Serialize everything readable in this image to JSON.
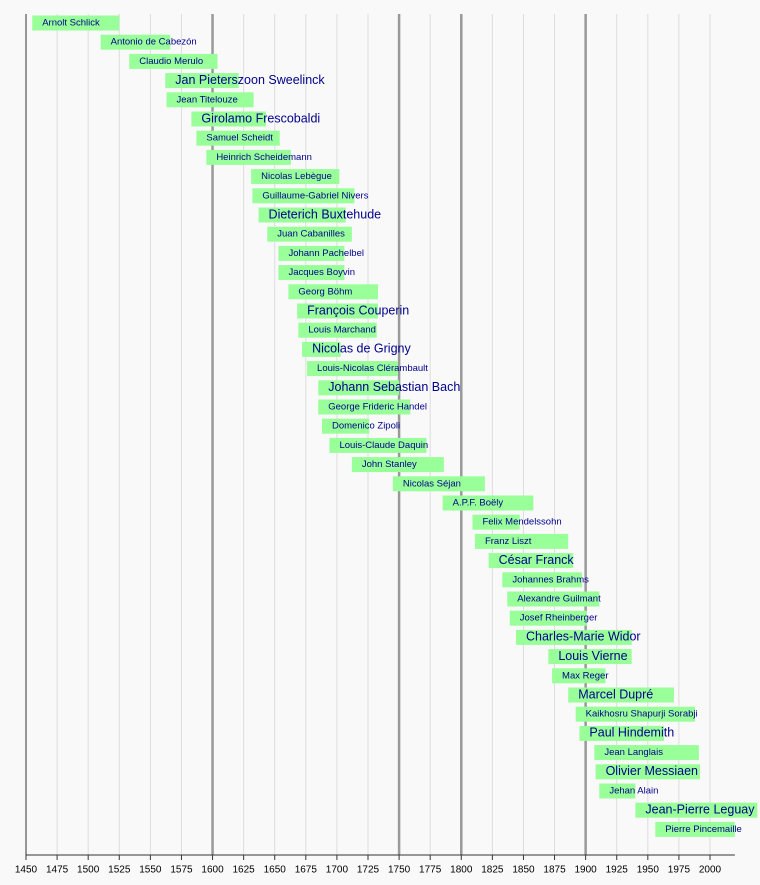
{
  "chart_data": {
    "type": "timeline",
    "categories": [
      "Arnolt Schlick",
      "Antonio de Cabezón",
      "Claudio Merulo",
      "Jan Pieterszoon Sweelinck",
      "Jean Titelouze",
      "Girolamo Frescobaldi",
      "Samuel Scheidt",
      "Heinrich Scheidemann",
      "Nicolas Lebègue",
      "Guillaume-Gabriel Nivers",
      "Dieterich Buxtehude",
      "Juan Cabanilles",
      "Johann Pachelbel",
      "Jacques Boyvin",
      "Georg Böhm",
      "François Couperin",
      "Louis Marchand",
      "Nicolas de Grigny",
      "Louis-Nicolas Clérambault",
      "Johann Sebastian Bach",
      "George Frideric Handel",
      "Domenico Zipoli",
      "Louis-Claude Daquin",
      "John Stanley",
      "Nicolas Séjan",
      "A.P.F. Boëly",
      "Felix Mendelssohn",
      "Franz Liszt",
      "César Franck",
      "Johannes Brahms",
      "Alexandre Guilmant",
      "Josef Rheinberger",
      "Charles-Marie Widor",
      "Louis Vierne",
      "Max Reger",
      "Marcel Dupré",
      "Kaikhosru Shapurji Sorabji",
      "Paul Hindemith",
      "Jean Langlais",
      "Olivier Messiaen",
      "Jehan Alain",
      "Jean-Pierre Leguay",
      "Pierre Pincemaille"
    ],
    "start": [
      1455,
      1510,
      1533,
      1562,
      1563,
      1583,
      1587,
      1595,
      1631,
      1632,
      1637,
      1644,
      1653,
      1653,
      1661,
      1668,
      1669,
      1672,
      1676,
      1685,
      1685,
      1688,
      1694,
      1712,
      1745,
      1785,
      1809,
      1811,
      1822,
      1833,
      1837,
      1839,
      1844,
      1870,
      1873,
      1886,
      1892,
      1895,
      1907,
      1908,
      1911,
      1940,
      1956
    ],
    "end": [
      1525,
      1566,
      1604,
      1621,
      1633,
      1643,
      1654,
      1663,
      1702,
      1714,
      1707,
      1712,
      1706,
      1706,
      1733,
      1733,
      1732,
      1703,
      1749,
      1750,
      1759,
      1726,
      1772,
      1786,
      1819,
      1858,
      1847,
      1886,
      1890,
      1897,
      1911,
      1901,
      1937,
      1937,
      1916,
      1971,
      1988,
      1963,
      1991,
      1992,
      1940,
      2038,
      2020
    ],
    "large_label": [
      false,
      false,
      false,
      true,
      false,
      true,
      false,
      false,
      false,
      false,
      true,
      false,
      false,
      false,
      false,
      true,
      false,
      true,
      false,
      true,
      false,
      false,
      false,
      false,
      false,
      false,
      false,
      false,
      true,
      false,
      false,
      false,
      true,
      true,
      false,
      true,
      false,
      true,
      false,
      true,
      false,
      true,
      false
    ],
    "color": "#99ff99",
    "label_color": "#00008b",
    "xlim": [
      1450,
      2020
    ],
    "xticks": [
      1450,
      1475,
      1500,
      1525,
      1550,
      1575,
      1600,
      1625,
      1650,
      1675,
      1700,
      1725,
      1750,
      1775,
      1800,
      1825,
      1850,
      1875,
      1900,
      1925,
      1950,
      1975,
      2000
    ],
    "major_lines": [
      1600,
      1750,
      1800,
      1900
    ],
    "grid": true
  }
}
